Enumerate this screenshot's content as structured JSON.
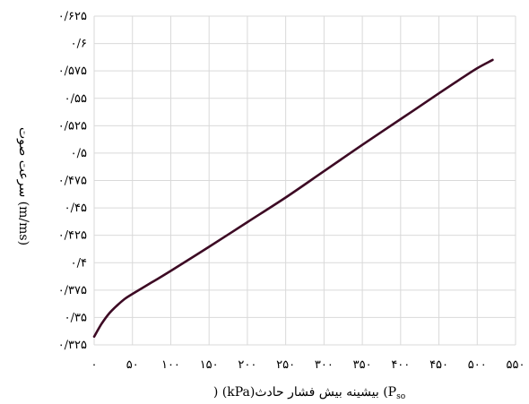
{
  "chart_data": {
    "type": "line",
    "xlabel": "بیشینه بیش فشار حادث (P",
    "xlabel_sub": "so",
    "xlabel_unit": ") (kPa)",
    "ylabel": "سرعت صوت (m/ms)",
    "xlim": [
      0,
      550
    ],
    "ylim": [
      0.325,
      0.625
    ],
    "grid": true,
    "xticks": [
      0,
      50,
      100,
      150,
      200,
      250,
      300,
      350,
      400,
      450,
      500,
      550
    ],
    "xtick_labels": [
      "۰",
      "۵۰",
      "۱۰۰",
      "۱۵۰",
      "۲۰۰",
      "۲۵۰",
      "۳۰۰",
      "۳۵۰",
      "۴۰۰",
      "۴۵۰",
      "۵۰۰",
      "۵۵۰"
    ],
    "yticks": [
      0.325,
      0.35,
      0.375,
      0.4,
      0.425,
      0.45,
      0.475,
      0.5,
      0.525,
      0.55,
      0.575,
      0.6,
      0.625
    ],
    "ytick_labels": [
      "۰/۳۲۵",
      "۰/۳۵",
      "۰/۳۷۵",
      "۰/۴",
      "۰/۴۲۵",
      "۰/۴۵",
      "۰/۴۷۵",
      "۰/۵",
      "۰/۵۲۵",
      "۰/۵۵",
      "۰/۵۷۵",
      "۰/۶",
      "۰/۶۲۵"
    ],
    "series": [
      {
        "color": "#3d0a24",
        "x": [
          0,
          10,
          20,
          30,
          40,
          50,
          75,
          100,
          150,
          200,
          250,
          300,
          350,
          400,
          450,
          480,
          500,
          520
        ],
        "y": [
          0.3325,
          0.3445,
          0.354,
          0.361,
          0.367,
          0.3715,
          0.382,
          0.3925,
          0.4145,
          0.437,
          0.4595,
          0.4835,
          0.5075,
          0.531,
          0.5545,
          0.5685,
          0.5775,
          0.585
        ]
      }
    ]
  }
}
